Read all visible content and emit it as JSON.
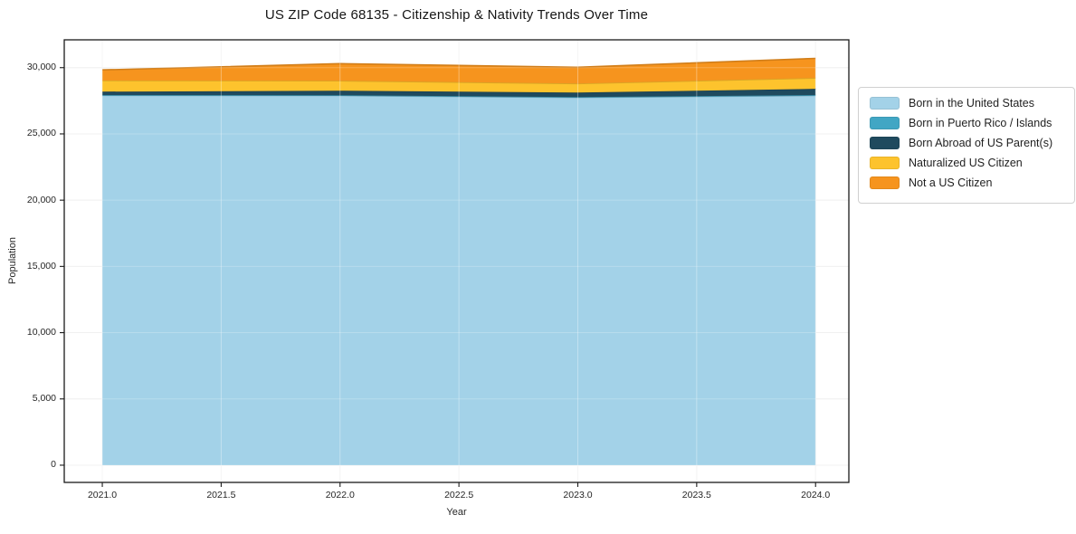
{
  "title": "US ZIP Code 68135 - Citizenship & Nativity Trends Over Time",
  "chart_data": {
    "type": "area",
    "stacked": true,
    "title": "US ZIP Code 68135 - Citizenship & Nativity Trends Over Time",
    "xlabel": "Year",
    "ylabel": "Population",
    "x": [
      2021,
      2022,
      2023,
      2024
    ],
    "xlim": [
      2020.84,
      2024.14
    ],
    "ylim": [
      -1300,
      32100
    ],
    "x_tick_values": [
      2021.0,
      2021.5,
      2022.0,
      2022.5,
      2023.0,
      2023.5,
      2024.0
    ],
    "x_tick_labels": [
      "2021.0",
      "2021.5",
      "2022.0",
      "2022.5",
      "2023.0",
      "2023.5",
      "2024.0"
    ],
    "y_tick_values": [
      0,
      5000,
      10000,
      15000,
      20000,
      25000,
      30000
    ],
    "y_tick_labels": [
      "0",
      "5,000",
      "10,000",
      "15,000",
      "20,000",
      "25,000",
      "30,000"
    ],
    "grid": true,
    "legend_position": "right",
    "series": [
      {
        "name": "Born in the United States",
        "color": "#a3d2e8",
        "values": [
          27900,
          27890,
          27750,
          27890
        ]
      },
      {
        "name": "Born in Puerto Rico / Islands",
        "color": "#41a6c4",
        "values": [
          30,
          30,
          30,
          40
        ]
      },
      {
        "name": "Born Abroad of US Parent(s)",
        "color": "#1f4a5e",
        "values": [
          260,
          340,
          340,
          470
        ]
      },
      {
        "name": "Naturalized US Citizen",
        "color": "#fdc32d",
        "values": [
          840,
          750,
          680,
          820
        ]
      },
      {
        "name": "Not a US Citizen",
        "color": "#f6941e",
        "values": [
          800,
          1290,
          1230,
          1480
        ]
      }
    ]
  }
}
